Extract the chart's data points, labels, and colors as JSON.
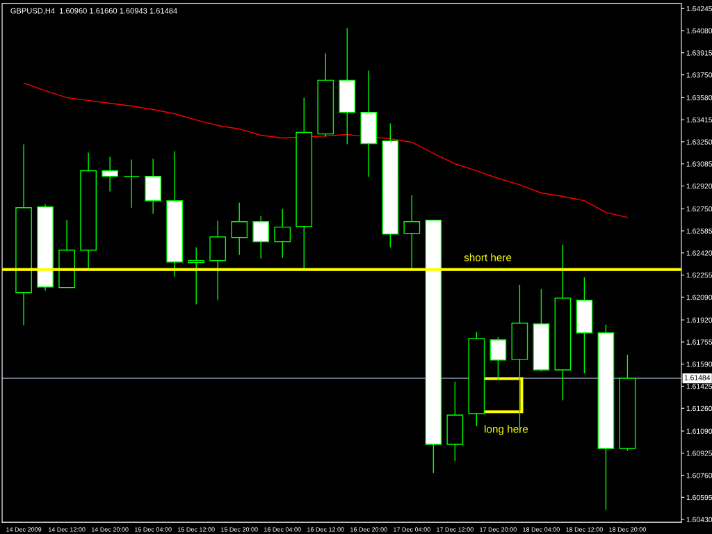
{
  "chart_data": {
    "type": "candlestick",
    "title": "GBPUSD,H4  1.60960 1.61660 1.60943 1.61484",
    "color": "#00ff00",
    "categories": [
      "14 Dec 2009",
      null,
      "14 Dec 12:00",
      null,
      "14 Dec 20:00",
      null,
      "15 Dec 04:00",
      null,
      "15 Dec 12:00",
      null,
      "15 Dec 20:00",
      null,
      "16 Dec 04:00",
      null,
      "16 Dec 12:00",
      null,
      "16 Dec 20:00",
      null,
      "17 Dec 04:00",
      null,
      "17 Dec 12:00",
      null,
      "17 Dec 20:00",
      null,
      "18 Dec 04:00",
      null,
      "18 Dec 12:00",
      null,
      "18 Dec 20:00"
    ],
    "ohlc": [
      [
        1.62124,
        1.63231,
        1.6188,
        1.62758
      ],
      [
        1.62764,
        1.62784,
        1.6214,
        1.62166
      ],
      [
        1.62161,
        1.62665,
        1.62161,
        1.62441
      ],
      [
        1.62441,
        1.63169,
        1.62301,
        1.63034
      ],
      [
        1.63034,
        1.63138,
        1.62878,
        1.62992
      ],
      [
        1.62992,
        1.63117,
        1.62758,
        1.62992
      ],
      [
        1.62992,
        1.63122,
        1.62712,
        1.6281
      ],
      [
        1.6281,
        1.63179,
        1.62244,
        1.62353
      ],
      [
        1.62348,
        1.62462,
        1.62036,
        1.62363
      ],
      [
        1.62363,
        1.6266,
        1.62067,
        1.6254
      ],
      [
        1.62535,
        1.62795,
        1.62405,
        1.62654
      ],
      [
        1.62654,
        1.62696,
        1.62379,
        1.62504
      ],
      [
        1.62504,
        1.62748,
        1.62384,
        1.62613
      ],
      [
        1.62618,
        1.6358,
        1.62296,
        1.6332
      ],
      [
        1.63309,
        1.63912,
        1.63289,
        1.6371
      ],
      [
        1.6371,
        1.641,
        1.63231,
        1.6347
      ],
      [
        1.6347,
        1.63782,
        1.62987,
        1.63237
      ],
      [
        1.63257,
        1.63387,
        1.62462,
        1.62561
      ],
      [
        1.62566,
        1.62852,
        1.62296,
        1.62654
      ],
      [
        1.62665,
        1.62665,
        1.60778,
        1.60991
      ],
      [
        1.60991,
        1.61459,
        1.60866,
        1.61209
      ],
      [
        1.6122,
        1.61828,
        1.61126,
        1.61781
      ],
      [
        1.61771,
        1.61792,
        1.61474,
        1.6162
      ],
      [
        1.61625,
        1.62181,
        1.61074,
        1.61896
      ],
      [
        1.6189,
        1.6215,
        1.61537,
        1.61547
      ],
      [
        1.61547,
        1.62483,
        1.61319,
        1.62083
      ],
      [
        1.62067,
        1.62239,
        1.61521,
        1.61823
      ],
      [
        1.61823,
        1.61885,
        1.60502,
        1.6096
      ],
      [
        1.6096,
        1.6166,
        1.60943,
        1.61484
      ]
    ],
    "series": [
      {
        "type": "line",
        "color": "#ff0000",
        "values": [
          1.63689,
          1.63632,
          1.6358,
          1.63559,
          1.63538,
          1.63517,
          1.63491,
          1.6346,
          1.63413,
          1.63372,
          1.63346,
          1.63299,
          1.63278,
          null,
          1.63294,
          1.63304,
          null,
          1.63273,
          1.63247,
          1.63164,
          1.63086,
          1.63034,
          1.62977,
          1.6293,
          1.62868,
          1.62842,
          1.6281,
          1.62722,
          1.62686
        ]
      }
    ],
    "ylim": [
      1.60409,
      1.64281
    ],
    "yticks": [
      {
        "value": 1.64245,
        "label": "1.64245"
      },
      {
        "value": 1.6408,
        "label": "1.64080"
      },
      {
        "value": 1.63915,
        "label": "1.63915"
      },
      {
        "value": 1.6375,
        "label": "1.63750"
      },
      {
        "value": 1.6358,
        "label": "1.63580"
      },
      {
        "value": 1.63415,
        "label": "1.63415"
      },
      {
        "value": 1.6325,
        "label": "1.63250"
      },
      {
        "value": 1.63085,
        "label": "1.63085"
      },
      {
        "value": 1.6292,
        "label": "1.62920"
      },
      {
        "value": 1.6275,
        "label": "1.62750"
      },
      {
        "value": 1.62585,
        "label": "1.62585"
      },
      {
        "value": 1.6242,
        "label": "1.62420"
      },
      {
        "value": 1.62255,
        "label": "1.62255"
      },
      {
        "value": 1.6209,
        "label": "1.62090"
      },
      {
        "value": 1.6192,
        "label": "1.61920"
      },
      {
        "value": 1.61755,
        "label": "1.61755"
      },
      {
        "value": 1.6159,
        "label": "1.61590"
      },
      {
        "value": 1.61425,
        "label": "1.61425"
      },
      {
        "value": 1.6126,
        "label": "1.61260"
      },
      {
        "value": 1.6109,
        "label": "1.61090"
      },
      {
        "value": 1.60925,
        "label": "1.60925"
      },
      {
        "value": 1.6076,
        "label": "1.60760"
      },
      {
        "value": 1.60595,
        "label": "1.60595"
      },
      {
        "value": 1.6043,
        "label": "1.60430"
      }
    ],
    "ref_lines": [
      {
        "axis": "y",
        "value": 1.61484,
        "label": "1.61484",
        "color": "#8899aa"
      },
      {
        "axis": "y",
        "value": 1.62296,
        "label": "short here",
        "color": "#ffff00"
      }
    ],
    "annotations": [
      "long here"
    ],
    "grid": false
  }
}
